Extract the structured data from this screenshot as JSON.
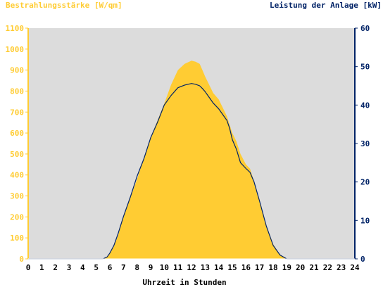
{
  "colors": {
    "irradiance": "#ffcc33",
    "power": "#002266",
    "plot_bg": "#dcdcdc",
    "left_axis_text": "#ffcc33",
    "right_axis_text": "#002266",
    "x_axis_text": "#000000"
  },
  "chart_data": {
    "type": "area",
    "title_left": "Bestrahlungsstärke [W/qm]",
    "title_right": "Leistung der Anlage [kW]",
    "xlabel": "Uhrzeit in Stunden",
    "xlim": [
      0,
      24
    ],
    "x_ticks": [
      "0",
      "1",
      "2",
      "3",
      "4",
      "5",
      "6",
      "7",
      "8",
      "9",
      "10",
      "11",
      "12",
      "13",
      "14",
      "15",
      "16",
      "17",
      "18",
      "19",
      "20",
      "21",
      "22",
      "23",
      "24"
    ],
    "y_left_lim": [
      0,
      1100
    ],
    "y_left_ticks": [
      "0",
      "100",
      "200",
      "300",
      "400",
      "500",
      "600",
      "700",
      "800",
      "900",
      "1000",
      "1100"
    ],
    "y_right_lim": [
      0,
      60
    ],
    "y_right_ticks": [
      "0",
      "10",
      "20",
      "30",
      "40",
      "50",
      "60"
    ],
    "grid": false,
    "series": [
      {
        "axis": "left",
        "kind": "area",
        "x": [
          0,
          5.5,
          5.8,
          6.0,
          6.3,
          6.6,
          7.0,
          7.5,
          8.0,
          8.5,
          9.0,
          9.5,
          10.0,
          10.5,
          11.0,
          11.5,
          12.0,
          12.3,
          12.6,
          12.8,
          13.0,
          13.3,
          13.6,
          14.0,
          14.3,
          14.6,
          14.8,
          15.0,
          15.3,
          15.6,
          16.0,
          16.3,
          16.6,
          17.0,
          17.5,
          18.0,
          18.5,
          19.0,
          24
        ],
        "y": [
          0,
          0,
          10,
          25,
          60,
          110,
          200,
          290,
          380,
          480,
          580,
          660,
          740,
          830,
          900,
          930,
          945,
          940,
          930,
          900,
          870,
          830,
          790,
          760,
          720,
          680,
          640,
          600,
          560,
          500,
          450,
          430,
          370,
          270,
          160,
          70,
          20,
          0,
          0
        ]
      },
      {
        "axis": "right",
        "kind": "line",
        "x": [
          0,
          5.5,
          5.8,
          6.0,
          6.3,
          6.6,
          7.0,
          7.5,
          8.0,
          8.5,
          9.0,
          9.5,
          10.0,
          10.5,
          11.0,
          11.5,
          12.0,
          12.3,
          12.6,
          12.8,
          13.0,
          13.3,
          13.6,
          14.0,
          14.3,
          14.6,
          14.8,
          15.0,
          15.3,
          15.6,
          16.0,
          16.3,
          16.6,
          17.0,
          17.5,
          18.0,
          18.5,
          19.0,
          24
        ],
        "y": [
          0,
          0,
          0.5,
          1.5,
          3.5,
          6.5,
          11,
          16,
          21.5,
          26,
          31.5,
          35.5,
          40,
          42.5,
          44.5,
          45.2,
          45.6,
          45.4,
          45.0,
          44.3,
          43.5,
          42.0,
          40.5,
          39.0,
          37.5,
          36.0,
          34.0,
          31.0,
          28.5,
          25.0,
          23.5,
          22.5,
          20.0,
          15.0,
          8.5,
          3.5,
          1.0,
          0,
          0
        ]
      }
    ]
  }
}
